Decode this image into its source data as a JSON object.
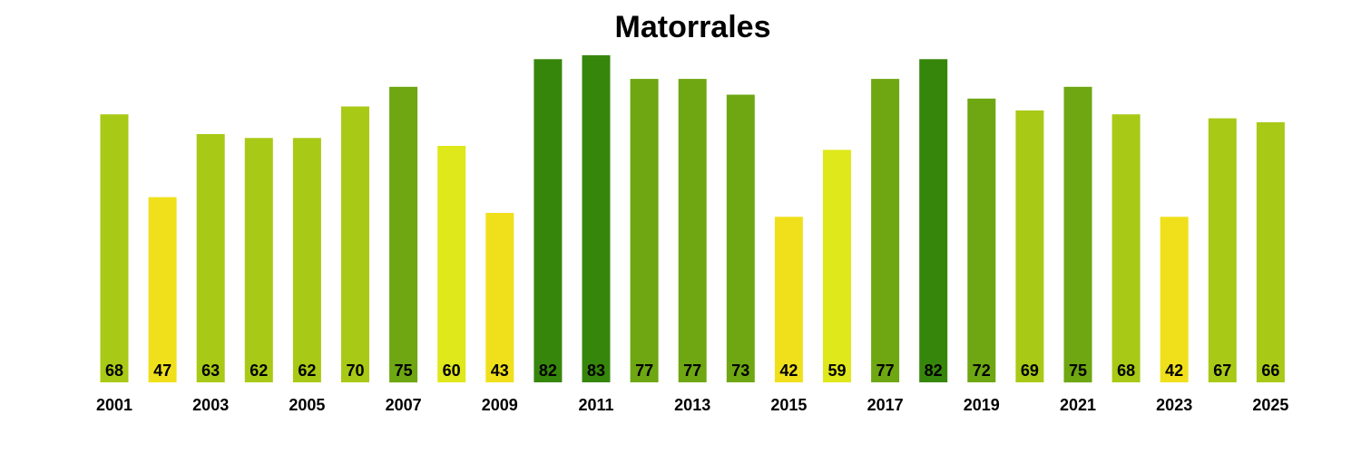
{
  "chart_data": {
    "type": "bar",
    "title": "Matorrales",
    "xlabel": "",
    "ylabel": "",
    "categories": [
      "2001",
      "2002",
      "2003",
      "2004",
      "2005",
      "2006",
      "2007",
      "2008",
      "2009",
      "2010",
      "2011",
      "2012",
      "2013",
      "2014",
      "2015",
      "2016",
      "2017",
      "2018",
      "2019",
      "2020",
      "2021",
      "2022",
      "2023",
      "2024",
      "2025"
    ],
    "values": [
      68,
      47,
      63,
      62,
      62,
      70,
      75,
      60,
      43,
      82,
      83,
      77,
      77,
      73,
      42,
      59,
      77,
      82,
      72,
      69,
      75,
      68,
      42,
      67,
      66
    ],
    "tick_labels": [
      "2001",
      "2003",
      "2005",
      "2007",
      "2009",
      "2011",
      "2013",
      "2015",
      "2017",
      "2019",
      "2021",
      "2023",
      "2025"
    ],
    "value_labels_shown": true,
    "grid": false,
    "legend": "none",
    "colors": [
      "#a8c916",
      "#f0e01b",
      "#a8c916",
      "#a8c916",
      "#a8c916",
      "#a8c916",
      "#6ea712",
      "#dfe81a",
      "#f0e01b",
      "#37860c",
      "#37860c",
      "#6ea712",
      "#6ea712",
      "#6ea712",
      "#f0e01b",
      "#dfe81a",
      "#6ea712",
      "#37860c",
      "#6ea712",
      "#a8c916",
      "#6ea712",
      "#a8c916",
      "#f0e01b",
      "#a8c916",
      "#a8c916"
    ]
  }
}
